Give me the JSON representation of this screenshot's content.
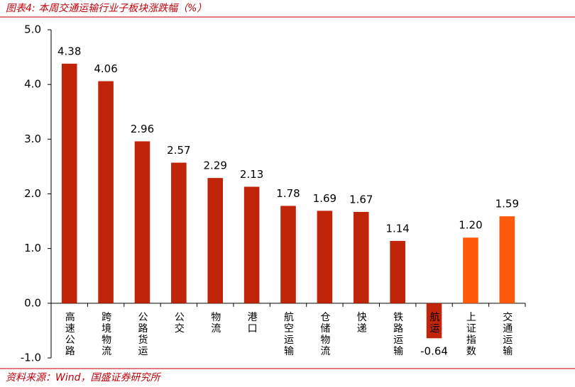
{
  "chart_data": {
    "type": "bar",
    "title": "图表4:  本周交通运输行业子板块涨跌幅（%）",
    "source": "资料来源：Wind，国盛证券研究所",
    "categories": [
      "高速公路",
      "跨境物流",
      "公路货运",
      "公交",
      "物流",
      "港口",
      "航空运输",
      "仓储物流",
      "快递",
      "铁路运输",
      "航运",
      "上证指数",
      "交通运输"
    ],
    "values": [
      4.38,
      4.06,
      2.96,
      2.57,
      2.29,
      2.13,
      1.78,
      1.69,
      1.67,
      1.14,
      -0.64,
      1.2,
      1.59
    ],
    "value_labels": [
      "4.38",
      "4.06",
      "2.96",
      "2.57",
      "2.29",
      "2.13",
      "1.78",
      "1.69",
      "1.67",
      "1.14",
      "-0.64",
      "1.20",
      "1.59"
    ],
    "colors": [
      "#c0250a",
      "#c0250a",
      "#c0250a",
      "#c0250a",
      "#c0250a",
      "#c0250a",
      "#c0250a",
      "#c0250a",
      "#c0250a",
      "#c0250a",
      "#c0250a",
      "#ff5a0a",
      "#ff5a0a"
    ],
    "ylim": [
      -1,
      5
    ],
    "yticks": [
      {
        "value": -1,
        "label": "-1.0"
      },
      {
        "value": 0,
        "label": "0.0"
      },
      {
        "value": 1,
        "label": "1.0"
      },
      {
        "value": 2,
        "label": "2.0"
      },
      {
        "value": 3,
        "label": "3.0"
      },
      {
        "value": 4,
        "label": "4.0"
      },
      {
        "value": 5,
        "label": "5.0"
      }
    ]
  }
}
